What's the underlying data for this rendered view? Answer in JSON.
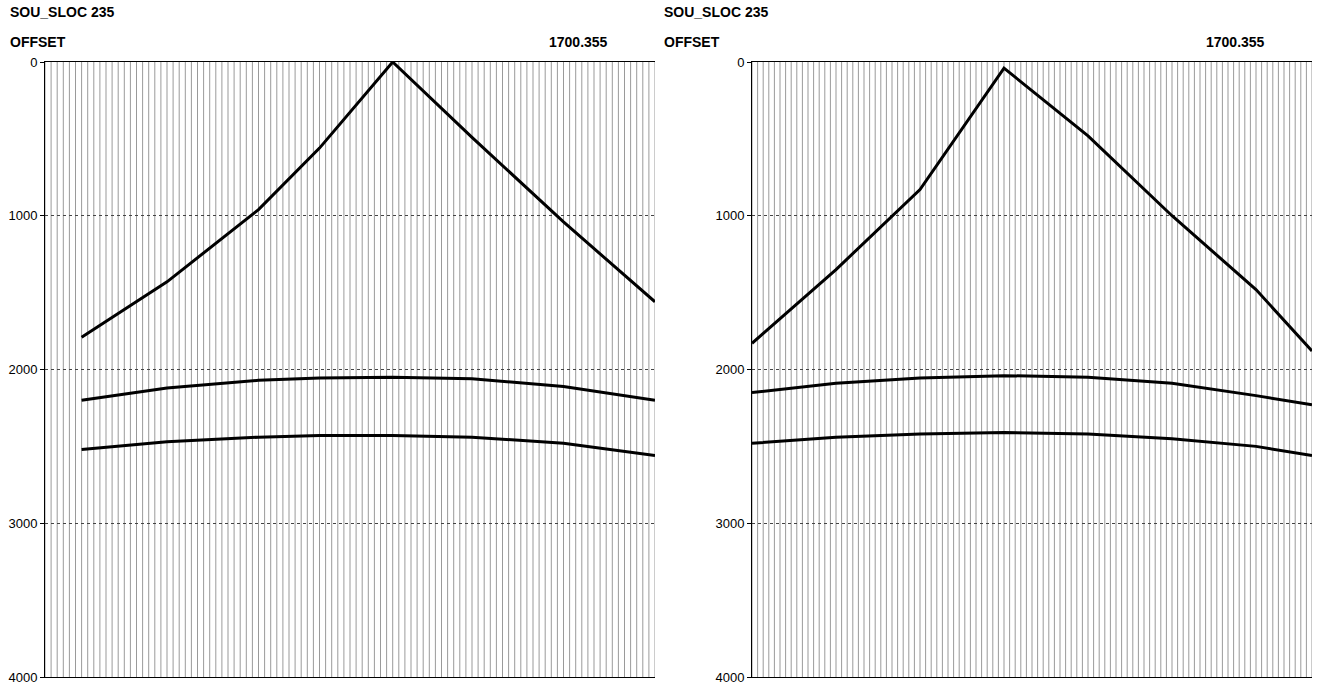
{
  "chart_data": [
    {
      "type": "line",
      "title": "SOU_SLOC 235",
      "x_label": "OFFSET",
      "annotation": "1700.355",
      "xlim": [
        0,
        100
      ],
      "ylim": [
        4000,
        0
      ],
      "yticks": [
        0,
        1000,
        2000,
        3000,
        4000
      ],
      "grid": true,
      "tick_labels": "y",
      "color": "#000000",
      "series": [
        {
          "x": [
            6,
            20,
            35,
            45,
            57,
            70,
            85,
            100
          ],
          "values": [
            1790,
            1430,
            960,
            560,
            0,
            490,
            1040,
            1560
          ]
        },
        {
          "x": [
            6,
            20,
            35,
            45,
            57,
            70,
            85,
            100
          ],
          "values": [
            2200,
            2120,
            2070,
            2055,
            2050,
            2060,
            2110,
            2200
          ]
        },
        {
          "x": [
            6,
            20,
            35,
            45,
            57,
            70,
            85,
            100
          ],
          "values": [
            2520,
            2470,
            2440,
            2430,
            2430,
            2440,
            2480,
            2560
          ]
        }
      ]
    },
    {
      "type": "line",
      "title": "SOU_SLOC 235",
      "x_label": "OFFSET",
      "annotation": "1700.355",
      "xlim": [
        0,
        100
      ],
      "ylim": [
        4000,
        0
      ],
      "yticks": [
        0,
        1000,
        2000,
        3000,
        4000
      ],
      "grid": true,
      "tick_labels": "y",
      "color": "#000000",
      "series": [
        {
          "x": [
            0,
            15,
            30,
            45,
            60,
            75,
            90,
            100
          ],
          "values": [
            1830,
            1350,
            830,
            40,
            480,
            1000,
            1480,
            1880
          ]
        },
        {
          "x": [
            0,
            15,
            30,
            45,
            60,
            75,
            90,
            100
          ],
          "values": [
            2150,
            2090,
            2055,
            2040,
            2050,
            2090,
            2170,
            2230
          ]
        },
        {
          "x": [
            0,
            15,
            30,
            45,
            60,
            75,
            90,
            100
          ],
          "values": [
            2480,
            2440,
            2420,
            2410,
            2420,
            2450,
            2500,
            2560
          ]
        }
      ]
    }
  ]
}
